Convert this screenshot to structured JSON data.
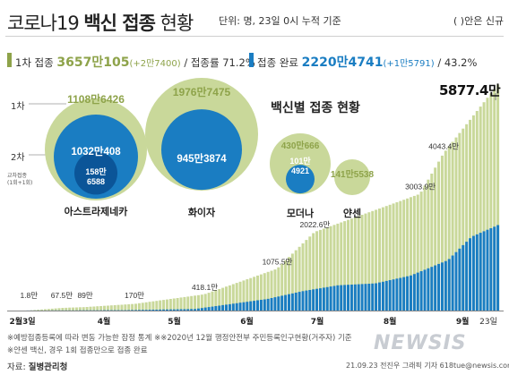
{
  "header": {
    "title_light1": "코로나19 ",
    "title_bold": "백신 접종",
    "title_light2": " 현황",
    "unit_note": "단위: 명, 23일 0시 누적 기준",
    "paren_note": "( )안은 신규"
  },
  "stats": {
    "first_label": "1차 접종",
    "first_value": "3657만105",
    "first_new": "(+2만7400)",
    "first_rate_label": "/ 접종률 71.2%",
    "complete_label": "접종 완료",
    "complete_value": "2220만4741",
    "complete_new": "(+1만5791)",
    "complete_rate_label": "/ 43.2%"
  },
  "vaccine_panel": {
    "title": "백신별 접종 현황",
    "row_labels": [
      "1차",
      "2차",
      "교차접종 (1회+1회)"
    ],
    "vaccines": [
      {
        "name": "아스트라제네카",
        "first": "1108만6426",
        "second": "1032만408",
        "cross": "158만6588"
      },
      {
        "name": "화이자",
        "first": "1976만7475",
        "second": "945만3874"
      },
      {
        "name": "모더나",
        "first": "430만666",
        "second": "101만4921"
      },
      {
        "name": "얀센",
        "first": "141만5538"
      }
    ]
  },
  "colors": {
    "light_green": "#c9d89a",
    "first_dose_green": "#8ea34a",
    "blue": "#1a7dc2",
    "dark_blue": "#0b5598",
    "watermark": "#c8ccd2"
  },
  "chart_data": {
    "type": "bar",
    "series": [
      {
        "name": "1차 접종",
        "color": "#c9d89a"
      },
      {
        "name": "접종 완료",
        "color": "#1a7dc2"
      }
    ],
    "x_labels": [
      "2월3일",
      "4월",
      "5월",
      "6월",
      "7월",
      "8월",
      "9월",
      "23일"
    ],
    "annotations": [
      {
        "date": "2021-03-05",
        "label": "1.8만",
        "value": 1.8
      },
      {
        "date": "2021-03-19",
        "label": "67.5만",
        "value": 67.5
      },
      {
        "date": "2021-03-29",
        "label": "89만",
        "value": 89
      },
      {
        "date": "2021-04-19",
        "label": "170만",
        "value": 170
      },
      {
        "date": "2021-05-19",
        "label": "418.1만",
        "value": 418.1
      },
      {
        "date": "2021-06-19",
        "label": "1075.5만",
        "value": 1075.5
      },
      {
        "date": "2021-07-05",
        "label": "2022.6만",
        "value": 2022.6
      },
      {
        "date": "2021-08-19",
        "label": "3003.9만",
        "value": 3003.9
      },
      {
        "date": "2021-08-29",
        "label": "4043.4만",
        "value": 4043.4
      },
      {
        "date": "2021-09-22",
        "label": "5877.4만",
        "value": 5877.4
      }
    ],
    "first_dose_points": [
      [
        "2021-02-26",
        0
      ],
      [
        "2021-03-10",
        50
      ],
      [
        "2021-04-01",
        89
      ],
      [
        "2021-04-20",
        170
      ],
      [
        "2021-05-15",
        370
      ],
      [
        "2021-06-01",
        560
      ],
      [
        "2021-06-15",
        1000
      ],
      [
        "2021-06-30",
        1560
      ],
      [
        "2021-07-20",
        1700
      ],
      [
        "2021-08-01",
        2000
      ],
      [
        "2021-08-15",
        2400
      ],
      [
        "2021-08-31",
        2900
      ],
      [
        "2021-09-10",
        3300
      ],
      [
        "2021-09-22",
        3657
      ]
    ],
    "complete_points": [
      [
        "2021-02-26",
        0
      ],
      [
        "2021-04-15",
        10
      ],
      [
        "2021-05-15",
        40
      ],
      [
        "2021-06-15",
        300
      ],
      [
        "2021-06-30",
        500
      ],
      [
        "2021-07-15",
        650
      ],
      [
        "2021-07-31",
        700
      ],
      [
        "2021-08-15",
        900
      ],
      [
        "2021-08-31",
        1300
      ],
      [
        "2021-09-10",
        1900
      ],
      [
        "2021-09-22",
        2220
      ]
    ]
  },
  "footnotes": [
    "※예방접종등록에 따라 변동 가능한 잠정 통계 ※※2020년 12월 행정안전부 주민등록인구현황(거주자) 기준",
    "※얀센 백신, 경우 1회 접종만으로 접종 완료"
  ],
  "source": {
    "label": "자료: ",
    "name": "질병관리청"
  },
  "credit": "21.09.23 전진우 그래픽 기자 618tue@newsis.com",
  "logo": "NEWSIS"
}
